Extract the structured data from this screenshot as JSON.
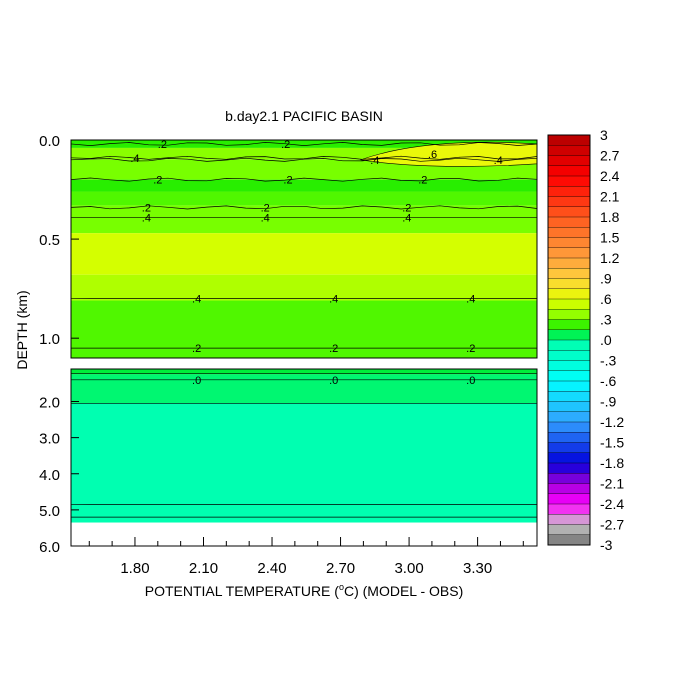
{
  "chart_data": {
    "type": "heatmap",
    "title": "b.day2.1 PACIFIC BASIN",
    "xlabel_prefix": "POTENTIAL TEMPERATURE (",
    "xlabel_unit_deg": "o",
    "xlabel_unit": "C",
    "xlabel_suffix": ") (MODEL - OBS)",
    "ylabel": "DEPTH (km)",
    "x_ticks": [
      1.8,
      2.1,
      2.4,
      2.7,
      3.0,
      3.3
    ],
    "x_tick_labels": [
      "1.80",
      "2.10",
      "2.40",
      "2.70",
      "3.00",
      "3.30"
    ],
    "xlim": [
      1.52,
      3.56
    ],
    "upper_panel": {
      "ylim": [
        0.0,
        1.1
      ],
      "y_ticks": [
        0.0,
        0.5,
        1.0
      ],
      "y_tick_labels": [
        "0.0",
        "0.5",
        "1.0"
      ]
    },
    "lower_panel": {
      "ylim": [
        1.1,
        6.0
      ],
      "y_ticks": [
        2.0,
        3.0,
        4.0,
        5.0,
        6.0
      ],
      "y_tick_labels": [
        "2.0",
        "3.0",
        "4.0",
        "5.0",
        "6.0"
      ],
      "data_bottom_depth": 5.35
    },
    "depth_bands": [
      {
        "from": 0.0,
        "to": 0.04,
        "value": 0.2
      },
      {
        "from": 0.04,
        "to": 0.1,
        "value": 0.35
      },
      {
        "from": 0.1,
        "to": 0.2,
        "value": 0.3
      },
      {
        "from": 0.2,
        "to": 0.26,
        "value": 0.2
      },
      {
        "from": 0.26,
        "to": 0.33,
        "value": 0.25
      },
      {
        "from": 0.33,
        "to": 0.47,
        "value": 0.3
      },
      {
        "from": 0.47,
        "to": 0.68,
        "value": 0.55
      },
      {
        "from": 0.68,
        "to": 0.81,
        "value": 0.45
      },
      {
        "from": 0.81,
        "to": 1.1,
        "value": 0.25
      },
      {
        "from": 1.1,
        "to": 1.25,
        "value": 0.1
      },
      {
        "from": 1.25,
        "to": 2.05,
        "value": 0.05
      },
      {
        "from": 2.05,
        "to": 5.35,
        "value": -0.05
      }
    ],
    "surface_warm_patch": {
      "x_from": 3.05,
      "x_to": 3.56,
      "depth_from": 0.02,
      "depth_to": 0.12,
      "value": 0.65
    },
    "contour_lines": [
      {
        "depth": 0.02,
        "level": ".2",
        "label_x": [
          1.92,
          2.46
        ],
        "panel": "upper"
      },
      {
        "depth": 0.09,
        "level": ".4",
        "label_x": [
          1.8
        ],
        "panel": "upper"
      },
      {
        "depth": 0.1,
        "level": ".4",
        "label_x": [
          2.85,
          3.39
        ],
        "panel": "upper"
      },
      {
        "depth": 0.2,
        "level": ".2",
        "label_x": [
          1.9,
          2.47,
          3.06
        ],
        "panel": "upper"
      },
      {
        "depth": 0.34,
        "level": ".2",
        "label_x": [
          1.85,
          2.37,
          2.99
        ],
        "panel": "upper"
      },
      {
        "depth": 0.39,
        "level": ".4",
        "label_x": [
          1.85,
          2.37,
          2.99
        ],
        "panel": "upper"
      },
      {
        "depth": 0.8,
        "level": ".4",
        "label_x": [
          2.07,
          2.67,
          3.27
        ],
        "panel": "upper"
      },
      {
        "depth": 1.05,
        "level": ".2",
        "label_x": [
          2.07,
          2.67,
          3.27
        ],
        "panel": "upper"
      },
      {
        "depth": 1.23,
        "level": "",
        "label_x": [],
        "panel": "lower"
      },
      {
        "depth": 1.4,
        "level": ".0",
        "label_x": [
          2.07,
          2.67,
          3.27
        ],
        "panel": "lower"
      },
      {
        "depth": 2.05,
        "level": "",
        "label_x": [],
        "panel": "lower"
      },
      {
        "depth": 4.85,
        "level": "",
        "label_x": [],
        "panel": "lower"
      },
      {
        "depth": 5.2,
        "level": "",
        "label_x": [],
        "panel": "lower"
      }
    ],
    "colorbar": {
      "min": -3.0,
      "max": 3.0,
      "step": 0.15,
      "labels": [
        "3",
        "2.7",
        "2.4",
        "2.1",
        "1.8",
        "1.5",
        "1.2",
        ".9",
        ".6",
        ".3",
        ".0",
        "-.3",
        "-.6",
        "-.9",
        "-1.2",
        "-1.5",
        "-1.8",
        "-2.1",
        "-2.4",
        "-2.7",
        "-3"
      ],
      "label_values": [
        3,
        2.7,
        2.4,
        2.1,
        1.8,
        1.5,
        1.2,
        0.9,
        0.6,
        0.3,
        0.0,
        -0.3,
        -0.6,
        -0.9,
        -1.2,
        -1.5,
        -1.8,
        -2.1,
        -2.4,
        -2.7,
        -3
      ],
      "stops": [
        {
          "value": 3.0,
          "color": "#b20000"
        },
        {
          "value": 2.4,
          "color": "#ff0000"
        },
        {
          "value": 1.8,
          "color": "#ff5a1e"
        },
        {
          "value": 1.2,
          "color": "#ffa03c"
        },
        {
          "value": 0.9,
          "color": "#ffd23c"
        },
        {
          "value": 0.6,
          "color": "#e6ff00"
        },
        {
          "value": 0.3,
          "color": "#78ff00"
        },
        {
          "value": 0.15,
          "color": "#00e600"
        },
        {
          "value": 0.0,
          "color": "#00ffaa"
        },
        {
          "value": -0.6,
          "color": "#00ffff"
        },
        {
          "value": -1.2,
          "color": "#32a0ff"
        },
        {
          "value": -1.8,
          "color": "#0000dc"
        },
        {
          "value": -2.1,
          "color": "#a000dc"
        },
        {
          "value": -2.4,
          "color": "#ff00ff"
        },
        {
          "value": -2.7,
          "color": "#c8c8c8"
        },
        {
          "value": -3.0,
          "color": "#6e6e6e"
        }
      ]
    },
    "grid": false,
    "legend_placement": "right"
  }
}
